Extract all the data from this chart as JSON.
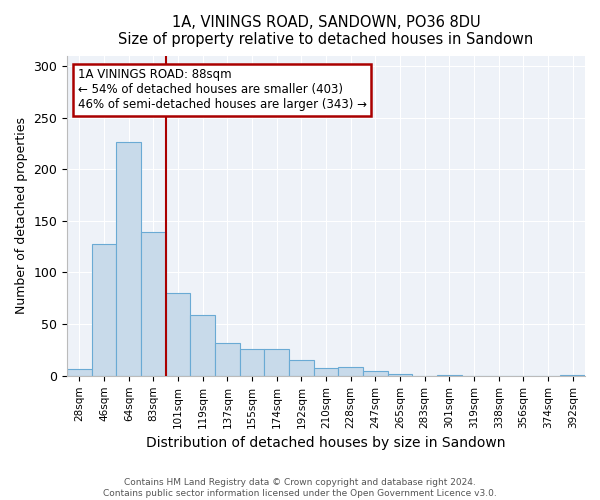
{
  "title": "1A, VININGS ROAD, SANDOWN, PO36 8DU",
  "subtitle": "Size of property relative to detached houses in Sandown",
  "xlabel": "Distribution of detached houses by size in Sandown",
  "ylabel": "Number of detached properties",
  "bin_labels": [
    "28sqm",
    "46sqm",
    "64sqm",
    "83sqm",
    "101sqm",
    "119sqm",
    "137sqm",
    "155sqm",
    "174sqm",
    "192sqm",
    "210sqm",
    "228sqm",
    "247sqm",
    "265sqm",
    "283sqm",
    "301sqm",
    "319sqm",
    "338sqm",
    "356sqm",
    "374sqm",
    "392sqm"
  ],
  "bar_values": [
    7,
    128,
    226,
    139,
    80,
    59,
    32,
    26,
    26,
    15,
    8,
    9,
    5,
    2,
    0,
    1,
    0,
    0,
    0,
    0,
    1
  ],
  "bar_color": "#c8daea",
  "bar_edge_color": "#6aaad4",
  "vline_color": "#aa0000",
  "annotation_title": "1A VININGS ROAD: 88sqm",
  "annotation_line1": "← 54% of detached houses are smaller (403)",
  "annotation_line2": "46% of semi-detached houses are larger (343) →",
  "annotation_box_color": "#ffffff",
  "annotation_border_color": "#aa0000",
  "ylim": [
    0,
    310
  ],
  "yticks": [
    0,
    50,
    100,
    150,
    200,
    250,
    300
  ],
  "footer1": "Contains HM Land Registry data © Crown copyright and database right 2024.",
  "footer2": "Contains public sector information licensed under the Open Government Licence v3.0.",
  "background_color": "#ffffff",
  "plot_bg_color": "#eef2f8",
  "grid_color": "#ffffff"
}
